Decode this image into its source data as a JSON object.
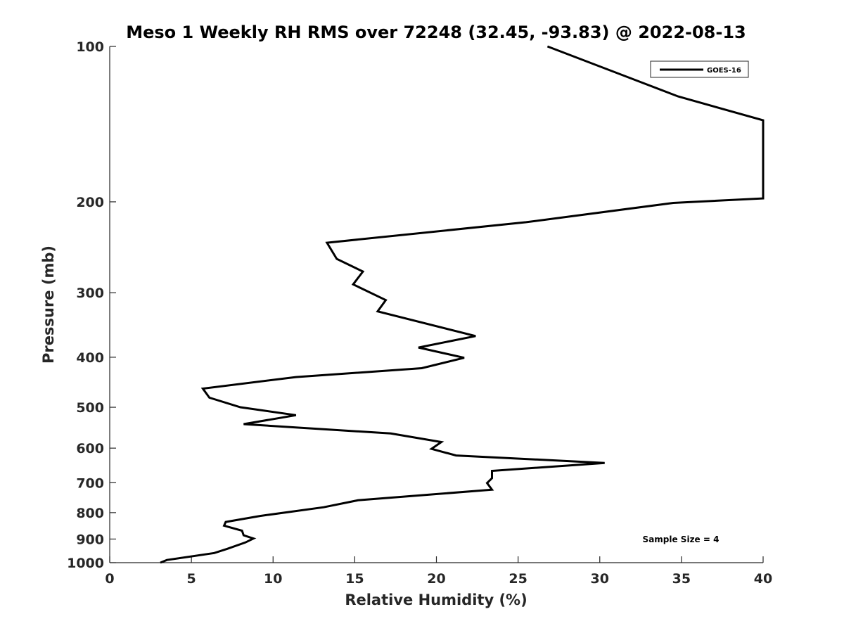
{
  "chart_data": {
    "type": "line",
    "title": "Meso 1 Weekly RH RMS over 72248 (32.45, -93.83) @ 2022-08-13",
    "xlabel": "Relative Humidity (%)",
    "ylabel": "Pressure (mb)",
    "xlim": [
      0,
      40
    ],
    "ylim": [
      100,
      1000
    ],
    "yscale": "log",
    "yaxis_reversed": true,
    "xticks": [
      "0",
      "5",
      "10",
      "15",
      "20",
      "25",
      "30",
      "35",
      "40"
    ],
    "yticks": [
      "100",
      "200",
      "300",
      "400",
      "500",
      "600",
      "700",
      "800",
      "900",
      "1000"
    ],
    "grid": false,
    "legend_position": "top-right",
    "annotation": "Sample Size = 4",
    "series": [
      {
        "name": "GOES-16",
        "color": "#000000",
        "points": [
          {
            "x": 26.8,
            "p": 100
          },
          {
            "x": 34.8,
            "p": 125
          },
          {
            "x": 40.0,
            "p": 139
          },
          {
            "x": 40.0,
            "p": 197
          },
          {
            "x": 34.5,
            "p": 201
          },
          {
            "x": 25.5,
            "p": 219
          },
          {
            "x": 13.3,
            "p": 240
          },
          {
            "x": 13.9,
            "p": 258
          },
          {
            "x": 15.5,
            "p": 273
          },
          {
            "x": 14.9,
            "p": 289
          },
          {
            "x": 16.9,
            "p": 310
          },
          {
            "x": 16.4,
            "p": 326
          },
          {
            "x": 22.4,
            "p": 364
          },
          {
            "x": 18.9,
            "p": 383
          },
          {
            "x": 21.7,
            "p": 401
          },
          {
            "x": 19.1,
            "p": 420
          },
          {
            "x": 11.4,
            "p": 437
          },
          {
            "x": 5.7,
            "p": 460
          },
          {
            "x": 6.1,
            "p": 479
          },
          {
            "x": 8.0,
            "p": 500
          },
          {
            "x": 11.4,
            "p": 518
          },
          {
            "x": 8.2,
            "p": 539
          },
          {
            "x": 17.2,
            "p": 562
          },
          {
            "x": 20.3,
            "p": 584
          },
          {
            "x": 19.7,
            "p": 602
          },
          {
            "x": 21.2,
            "p": 620
          },
          {
            "x": 30.3,
            "p": 641
          },
          {
            "x": 23.4,
            "p": 664
          },
          {
            "x": 23.4,
            "p": 686
          },
          {
            "x": 23.1,
            "p": 701
          },
          {
            "x": 23.4,
            "p": 722
          },
          {
            "x": 15.2,
            "p": 757
          },
          {
            "x": 13.1,
            "p": 781
          },
          {
            "x": 9.2,
            "p": 812
          },
          {
            "x": 7.1,
            "p": 834
          },
          {
            "x": 7.0,
            "p": 848
          },
          {
            "x": 8.1,
            "p": 867
          },
          {
            "x": 8.2,
            "p": 885
          },
          {
            "x": 8.8,
            "p": 898
          },
          {
            "x": 8.3,
            "p": 914
          },
          {
            "x": 7.2,
            "p": 940
          },
          {
            "x": 6.4,
            "p": 958
          },
          {
            "x": 3.5,
            "p": 988
          },
          {
            "x": 3.1,
            "p": 1000
          }
        ]
      }
    ]
  }
}
